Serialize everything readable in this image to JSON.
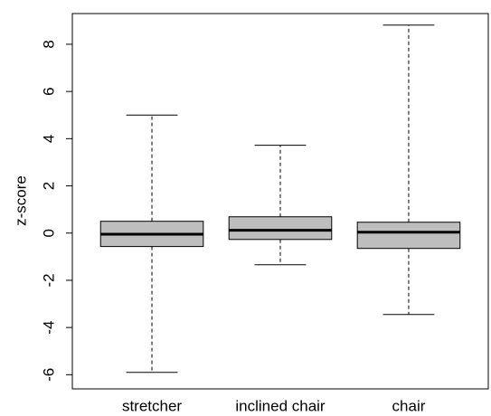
{
  "chart_data": {
    "type": "box",
    "y_label": "z-score",
    "categories": [
      "stretcher",
      "inclined chair",
      "chair"
    ],
    "whisker_low": [
      -5.9,
      -1.34,
      -3.45
    ],
    "q1": [
      -0.57,
      -0.27,
      -0.65
    ],
    "median": [
      -0.05,
      0.12,
      0.04
    ],
    "q3": [
      0.5,
      0.69,
      0.46
    ],
    "whisker_high": [
      5.0,
      3.72,
      8.81
    ],
    "color": "#bebebe",
    "ylim": [
      -6.6,
      9.3
    ],
    "yticks": [
      -6,
      -4,
      -2,
      0,
      2,
      4,
      6,
      8
    ]
  }
}
